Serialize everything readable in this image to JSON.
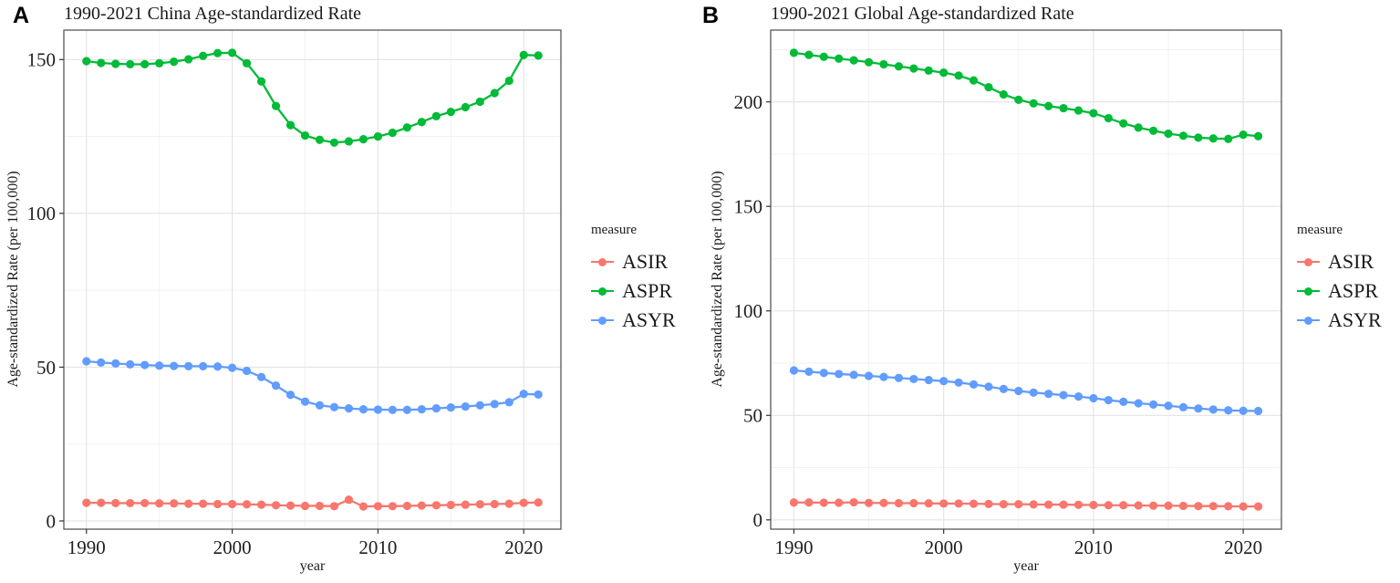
{
  "figure": {
    "background": "#ffffff",
    "panels": [
      {
        "letter": "A",
        "title": "1990-2021 China Age-standardized Rate",
        "y_axis_label": "Age-standardized Rate (per 100,000)",
        "x_axis_label": "year",
        "y_tick_labels": [
          "0",
          "50",
          "100",
          "150"
        ],
        "x_tick_labels": [
          "1990",
          "2000",
          "2010",
          "2020"
        ]
      },
      {
        "letter": "B",
        "title": "1990-2021 Global Age-standardized Rate",
        "y_axis_label": "Age-standardized Rate (per 100,000)",
        "x_axis_label": "year",
        "y_tick_labels": [
          "0",
          "50",
          "100",
          "150",
          "200"
        ],
        "x_tick_labels": [
          "1990",
          "2000",
          "2010",
          "2020"
        ]
      }
    ]
  },
  "legend": {
    "title": "measure",
    "entries": [
      "ASIR",
      "ASPR",
      "ASYR"
    ]
  },
  "colors": {
    "ASIR": "#F8766D",
    "ASPR": "#00BA38",
    "ASYR": "#619CFF"
  },
  "chart_data": [
    {
      "type": "line",
      "title": "1990-2021 China Age-standardized Rate",
      "xlabel": "year",
      "ylabel": "Age-standardized Rate (per 100,000)",
      "legend_title": "measure",
      "legend_position": "right",
      "grid": true,
      "x_ticks": [
        1990,
        2000,
        2010,
        2020
      ],
      "y_ticks": [
        0,
        50,
        100,
        150
      ],
      "ylim": [
        -3,
        160
      ],
      "x": [
        1990,
        1991,
        1992,
        1993,
        1994,
        1995,
        1996,
        1997,
        1998,
        1999,
        2000,
        2001,
        2002,
        2003,
        2004,
        2005,
        2006,
        2007,
        2008,
        2009,
        2010,
        2011,
        2012,
        2013,
        2014,
        2015,
        2016,
        2017,
        2018,
        2019,
        2020,
        2021
      ],
      "series": [
        {
          "name": "ASIR",
          "color": "#F8766D",
          "values": [
            5.9,
            5.9,
            5.8,
            5.8,
            5.8,
            5.7,
            5.7,
            5.6,
            5.6,
            5.5,
            5.5,
            5.4,
            5.3,
            5.1,
            5.0,
            4.9,
            4.9,
            4.8,
            6.9,
            4.7,
            4.8,
            4.8,
            4.9,
            5.0,
            5.1,
            5.2,
            5.3,
            5.4,
            5.5,
            5.6,
            5.9,
            6.0
          ]
        },
        {
          "name": "ASPR",
          "color": "#00BA38",
          "values": [
            149.5,
            148.9,
            148.6,
            148.5,
            148.5,
            148.8,
            149.3,
            150.1,
            151.2,
            152.1,
            152.2,
            148.8,
            142.9,
            134.9,
            128.7,
            125.3,
            123.9,
            123.0,
            123.4,
            124.1,
            125.0,
            126.2,
            127.9,
            129.7,
            131.6,
            133.0,
            134.5,
            136.3,
            139.1,
            143.1,
            151.5,
            151.3
          ]
        },
        {
          "name": "ASYR",
          "color": "#619CFF",
          "values": [
            51.9,
            51.5,
            51.2,
            50.9,
            50.7,
            50.5,
            50.4,
            50.3,
            50.3,
            50.2,
            49.8,
            48.8,
            46.8,
            44.0,
            41.0,
            38.8,
            37.6,
            37.0,
            36.6,
            36.3,
            36.2,
            36.1,
            36.1,
            36.3,
            36.6,
            36.9,
            37.2,
            37.6,
            38.0,
            38.6,
            41.3,
            41.1
          ]
        }
      ]
    },
    {
      "type": "line",
      "title": "1990-2021 Global Age-standardized Rate",
      "xlabel": "year",
      "ylabel": "Age-standardized Rate (per 100,000)",
      "legend_title": "measure",
      "legend_position": "right",
      "grid": true,
      "x_ticks": [
        1990,
        2000,
        2010,
        2020
      ],
      "y_ticks": [
        0,
        50,
        100,
        150,
        200
      ],
      "ylim": [
        -5,
        235
      ],
      "x": [
        1990,
        1991,
        1992,
        1993,
        1994,
        1995,
        1996,
        1997,
        1998,
        1999,
        2000,
        2001,
        2002,
        2003,
        2004,
        2005,
        2006,
        2007,
        2008,
        2009,
        2010,
        2011,
        2012,
        2013,
        2014,
        2015,
        2016,
        2017,
        2018,
        2019,
        2020,
        2021
      ],
      "series": [
        {
          "name": "ASIR",
          "color": "#F8766D",
          "values": [
            8.3,
            8.3,
            8.2,
            8.2,
            8.4,
            8.1,
            8.1,
            8.0,
            8.0,
            7.9,
            7.8,
            7.8,
            7.7,
            7.6,
            7.5,
            7.5,
            7.4,
            7.3,
            7.3,
            7.2,
            7.1,
            7.0,
            7.0,
            6.9,
            6.8,
            6.8,
            6.7,
            6.6,
            6.6,
            6.5,
            6.4,
            6.4
          ]
        },
        {
          "name": "ASPR",
          "color": "#00BA38",
          "values": [
            223.5,
            222.5,
            221.6,
            220.7,
            219.9,
            219.0,
            218.0,
            217.0,
            216.0,
            215.0,
            214.0,
            212.6,
            210.3,
            207.0,
            203.6,
            201.0,
            199.3,
            198.0,
            197.0,
            195.9,
            194.6,
            192.2,
            189.7,
            187.7,
            186.2,
            184.8,
            183.8,
            182.9,
            182.5,
            182.3,
            184.3,
            183.6
          ]
        },
        {
          "name": "ASYR",
          "color": "#619CFF",
          "values": [
            71.5,
            70.9,
            70.3,
            69.8,
            69.4,
            68.9,
            68.4,
            67.9,
            67.4,
            66.9,
            66.4,
            65.7,
            64.8,
            63.7,
            62.6,
            61.7,
            60.9,
            60.3,
            59.7,
            59.0,
            58.2,
            57.3,
            56.5,
            55.8,
            55.2,
            54.6,
            53.9,
            53.3,
            52.8,
            52.4,
            52.2,
            52.1
          ]
        }
      ]
    }
  ]
}
